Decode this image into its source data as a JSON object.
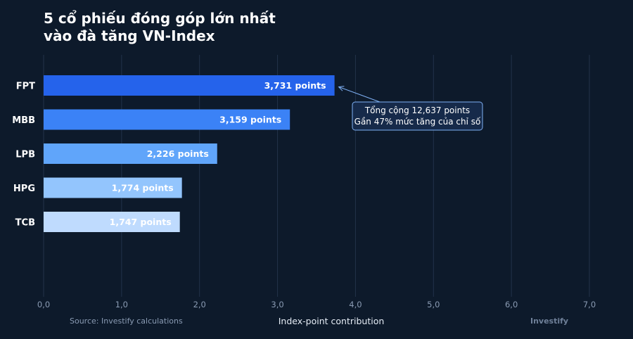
{
  "title": {
    "line1": "5 cổ phiếu đóng góp lớn nhất",
    "line2": "vào đà tăng VN-Index"
  },
  "source": "Source: Investify calculations",
  "brand": "Investify",
  "chart_data": {
    "type": "bar",
    "orientation": "horizontal",
    "categories": [
      "FPT",
      "MBB",
      "LPB",
      "HPG",
      "TCB"
    ],
    "values": [
      3.731,
      3.159,
      2.226,
      1.774,
      1.747
    ],
    "value_labels": [
      "3,731 points",
      "3,159 points",
      "2,226 points",
      "1,774 points",
      "1,747 points"
    ],
    "bar_colors": [
      "#2563eb",
      "#3b82f6",
      "#60a5fa",
      "#93c5fd",
      "#bfdbfe"
    ],
    "xlabel": "Index-point contribution",
    "xlim": [
      0,
      7
    ],
    "xticks": [
      0,
      1,
      2,
      3,
      4,
      5,
      6,
      7
    ],
    "xtick_labels": [
      "0,0",
      "1,0",
      "2,0",
      "3,0",
      "4,0",
      "5,0",
      "6,0",
      "7,0"
    ],
    "grid": true,
    "annotation": {
      "lines": [
        "Tổng cộng 12,637 points",
        "Gần 47% mức tăng của chỉ số"
      ],
      "target_category": "FPT"
    }
  }
}
